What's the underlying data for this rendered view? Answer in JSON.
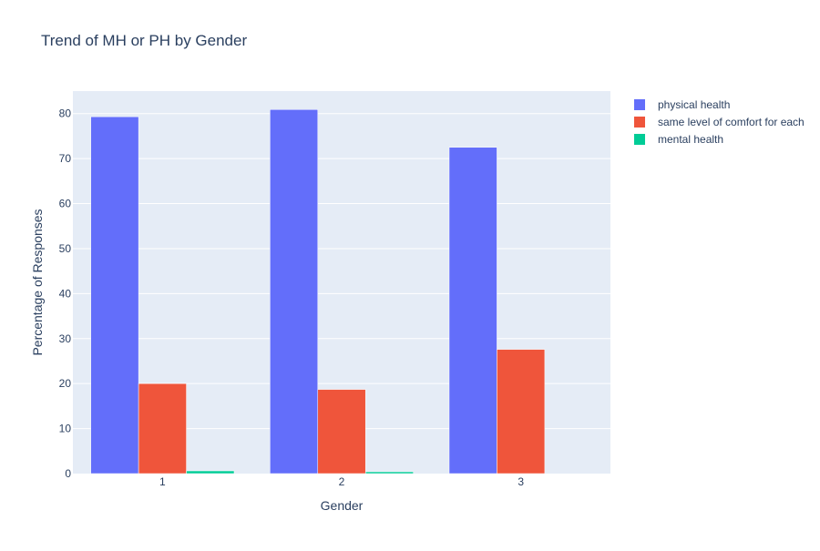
{
  "chart_data": {
    "type": "bar",
    "title": "Trend of MH or PH by Gender",
    "xlabel": "Gender",
    "ylabel": "Percentage of Responses",
    "categories": [
      "1",
      "2",
      "3"
    ],
    "ylim": [
      0,
      85
    ],
    "yticks": [
      0,
      10,
      20,
      30,
      40,
      50,
      60,
      70,
      80
    ],
    "grid": true,
    "legend_position": "top-right",
    "series": [
      {
        "name": "physical health",
        "color": "#636efa",
        "values": [
          79.3,
          80.9,
          72.5
        ]
      },
      {
        "name": "same level of comfort for each",
        "color": "#ef553b",
        "values": [
          20.0,
          18.7,
          27.6
        ]
      },
      {
        "name": "mental health",
        "color": "#00cc96",
        "values": [
          0.6,
          0.4,
          0.0
        ]
      }
    ]
  }
}
